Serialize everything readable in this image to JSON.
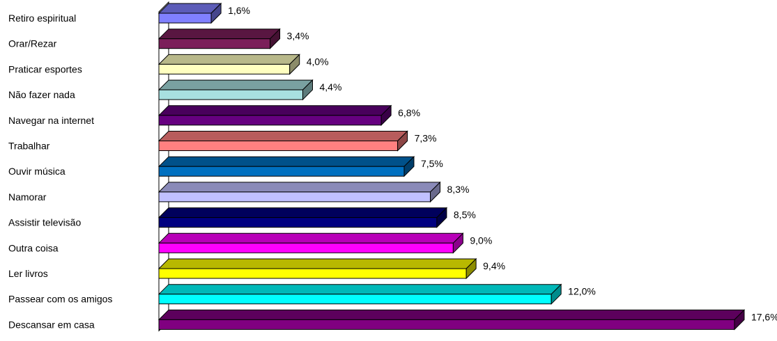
{
  "chart_data": {
    "type": "bar",
    "orientation": "horizontal",
    "style": "3d",
    "title": "",
    "xlabel": "",
    "ylabel": "",
    "value_suffix": "%",
    "decimal_separator": ",",
    "xlim": [
      0,
      17.6
    ],
    "grid": false,
    "legend": "none",
    "categories": [
      "Retiro espiritual",
      "Orar/Rezar",
      "Praticar esportes",
      "Não fazer nada",
      "Navegar na internet",
      "Trabalhar",
      "Ouvir música",
      "Namorar",
      "Assistir televisão",
      "Outra coisa",
      "Ler livros",
      "Passear com os amigos",
      "Descansar em casa"
    ],
    "values": [
      1.6,
      3.4,
      4.0,
      4.4,
      6.8,
      7.3,
      7.5,
      8.3,
      8.5,
      9.0,
      9.4,
      12.0,
      17.6
    ],
    "value_labels": [
      "1,6%",
      "3,4%",
      "4,0%",
      "4,4%",
      "6,8%",
      "7,3%",
      "7,5%",
      "8,3%",
      "8,5%",
      "9,0%",
      "9,4%",
      "12,0%",
      "17,6%"
    ],
    "colors": [
      "#8080ff",
      "#7b1f5a",
      "#ffffc0",
      "#a8e0e0",
      "#660080",
      "#ff8080",
      "#0070c0",
      "#c0c0ff",
      "#000080",
      "#ff00ff",
      "#ffff00",
      "#00ffff",
      "#800080"
    ]
  }
}
